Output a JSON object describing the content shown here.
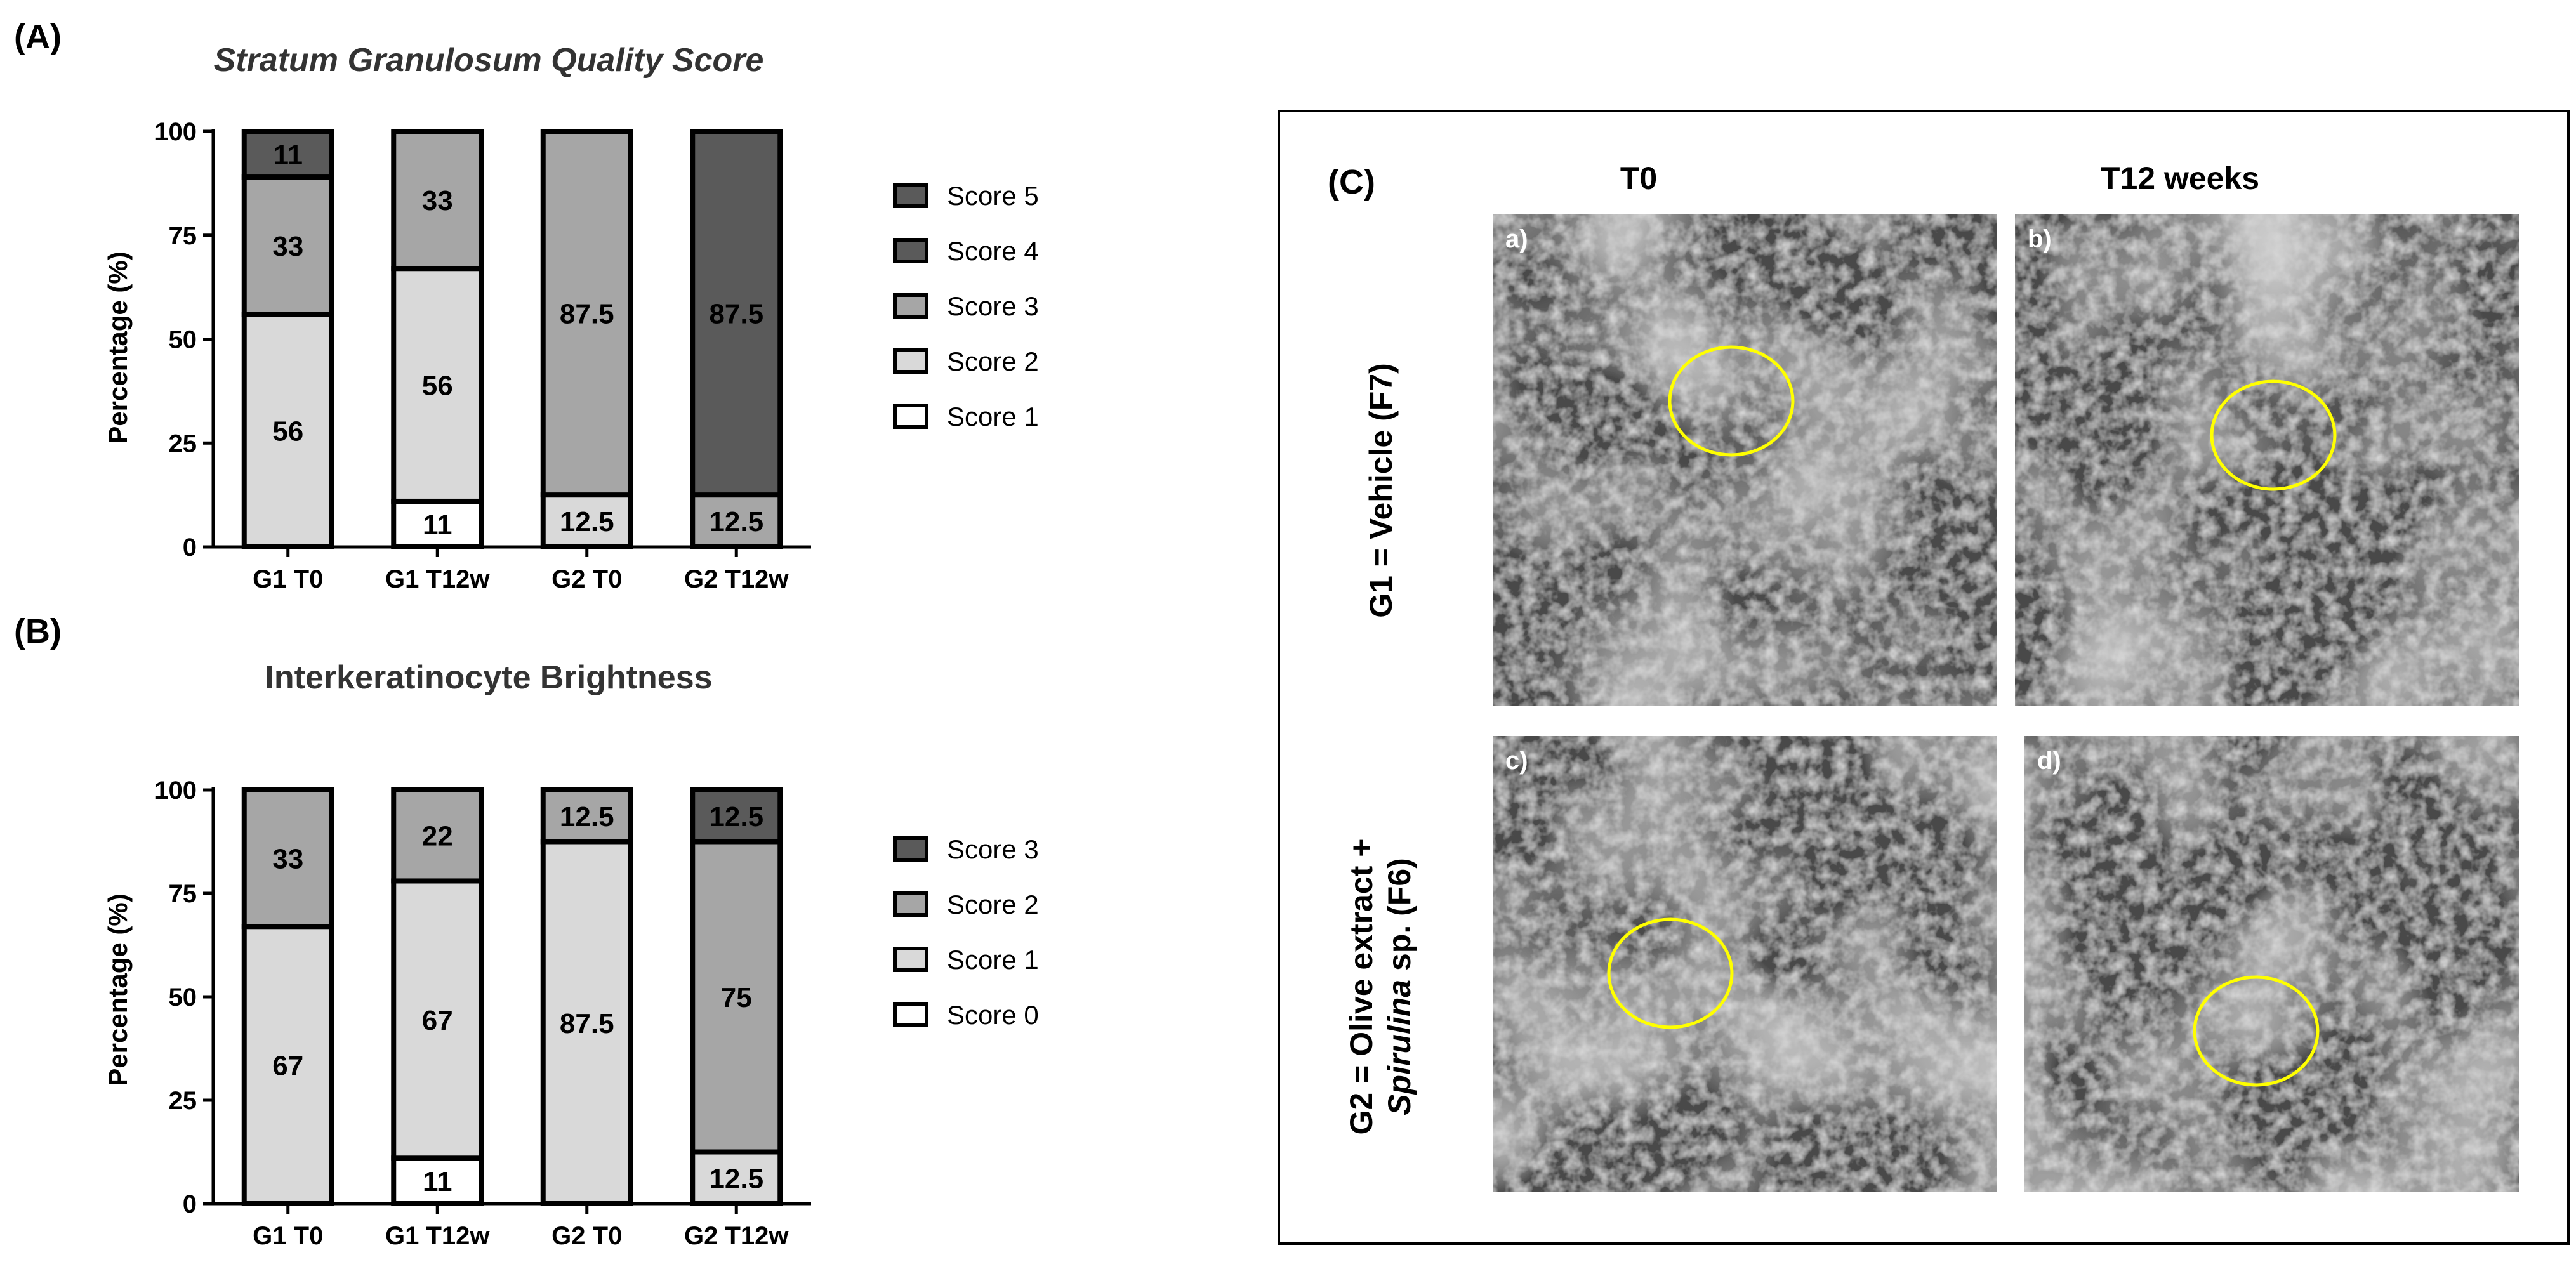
{
  "colors": {
    "score0": "#ffffff",
    "score1": "#d9d9d9",
    "score2": "#a6a6a6",
    "score3": "#5a5a5a",
    "stroke": "#000000",
    "circle": "#ffff00",
    "micro_bg": "#4a4a4a"
  },
  "chart_data": [
    {
      "type": "bar",
      "stacked": true,
      "panel_label": "(A)",
      "title": "Stratum Granulosum Quality Score",
      "title_italic": true,
      "ylabel": "Percentage (%)",
      "ylim": [
        0,
        100
      ],
      "yticks": [
        0,
        25,
        50,
        75,
        100
      ],
      "categories": [
        "G1 T0",
        "G1 T12w",
        "G2 T0",
        "G2 T12w"
      ],
      "legend_position": "right",
      "legend": [
        "Score 5",
        "Score 4",
        "Score 3",
        "Score 2",
        "Score 1"
      ],
      "segments": [
        [
          {
            "series": "Score 2",
            "value": 56,
            "label": "56"
          },
          {
            "series": "Score 3",
            "value": 33,
            "label": "33"
          },
          {
            "series": "Score 4",
            "value": 11,
            "label": "11"
          }
        ],
        [
          {
            "series": "Score 1",
            "value": 11,
            "label": "11"
          },
          {
            "series": "Score 2",
            "value": 56,
            "label": "56"
          },
          {
            "series": "Score 3",
            "value": 33,
            "label": "33"
          }
        ],
        [
          {
            "series": "Score 2",
            "value": 12.5,
            "label": "12.5"
          },
          {
            "series": "Score 3",
            "value": 87.5,
            "label": "87.5"
          }
        ],
        [
          {
            "series": "Score 3",
            "value": 12.5,
            "label": "12.5"
          },
          {
            "series": "Score 4",
            "value": 87.5,
            "label": "87.5"
          }
        ]
      ]
    },
    {
      "type": "bar",
      "stacked": true,
      "panel_label": "(B)",
      "title": "Interkeratinocyte Brightness",
      "title_italic": false,
      "ylabel": "Percentage (%)",
      "ylim": [
        0,
        100
      ],
      "yticks": [
        0,
        25,
        50,
        75,
        100
      ],
      "categories": [
        "G1 T0",
        "G1 T12w",
        "G2 T0",
        "G2 T12w"
      ],
      "legend_position": "right",
      "legend": [
        "Score 3",
        "Score 2",
        "Score 1",
        "Score 0"
      ],
      "segments": [
        [
          {
            "series": "Score 1",
            "value": 67,
            "label": "67"
          },
          {
            "series": "Score 2",
            "value": 33,
            "label": "33"
          }
        ],
        [
          {
            "series": "Score 0",
            "value": 11,
            "label": "11"
          },
          {
            "series": "Score 1",
            "value": 67,
            "label": "67"
          },
          {
            "series": "Score 2",
            "value": 22,
            "label": "22"
          }
        ],
        [
          {
            "series": "Score 1",
            "value": 87.5,
            "label": "87.5"
          },
          {
            "series": "Score 2",
            "value": 12.5,
            "label": "12.5"
          }
        ],
        [
          {
            "series": "Score 1",
            "value": 12.5,
            "label": "12.5"
          },
          {
            "series": "Score 2",
            "value": 75,
            "label": "75"
          },
          {
            "series": "Score 3",
            "value": 12.5,
            "label": "12.5"
          }
        ]
      ]
    }
  ],
  "series_color_map": {
    "A": {
      "Score 1": "score0",
      "Score 2": "score1",
      "Score 3": "score2",
      "Score 4": "score3",
      "Score 5": "score3"
    },
    "B": {
      "Score 0": "score0",
      "Score 1": "score1",
      "Score 2": "score2",
      "Score 3": "score3"
    }
  },
  "panel_c": {
    "label": "(C)",
    "col_headers": [
      "T0",
      "T12 weeks"
    ],
    "row_labels": [
      {
        "line1": "G1 = Vehicle (F7)",
        "line2": ""
      },
      {
        "line1": "G2 = Olive extract +",
        "line2_italic": "Spirulina",
        "line2_rest": " sp. (F6)"
      }
    ],
    "images": [
      {
        "letter": "a)",
        "image": "reflectance-confocal-micrograph-g1-t0"
      },
      {
        "letter": "b)",
        "image": "reflectance-confocal-micrograph-g1-t12"
      },
      {
        "letter": "c)",
        "image": "reflectance-confocal-micrograph-g2-t0"
      },
      {
        "letter": "d)",
        "image": "reflectance-confocal-micrograph-g2-t12"
      }
    ]
  }
}
